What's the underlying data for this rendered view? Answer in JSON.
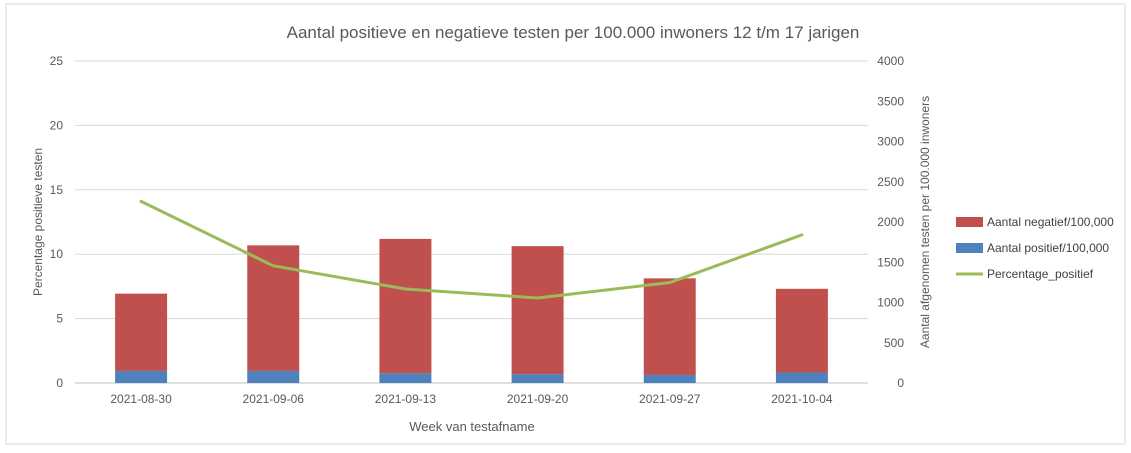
{
  "chart_data": {
    "type": "bar",
    "title": "Aantal positieve en negatieve testen per 100.000 inwoners 12 t/m 17 jarigen",
    "xlabel": "Week van testafname",
    "ylabel_left": "Percentage positieve testen",
    "ylabel_right": "Aantal afgenomen testen per 100.000 inwoners",
    "ylim_left": [
      0,
      25
    ],
    "ylim_right": [
      0,
      4000
    ],
    "yticks_left": [
      "0",
      "5",
      "10",
      "15",
      "20",
      "25"
    ],
    "yticks_right": [
      "0",
      "500",
      "1000",
      "1500",
      "2000",
      "2500",
      "3000",
      "3500",
      "4000"
    ],
    "categories": [
      "2021-08-30",
      "2021-09-06",
      "2021-09-13",
      "2021-09-20",
      "2021-09-27",
      "2021-10-04"
    ],
    "series": [
      {
        "name": "Aantal negatief/100,000",
        "kind": "stacked-bar",
        "axis": "right",
        "color": "#c0504d",
        "values": [
          960,
          1560,
          1670,
          1590,
          1200,
          1040
        ]
      },
      {
        "name": "Aantal positief/100,000",
        "kind": "stacked-bar",
        "axis": "right",
        "color": "#4f81bd",
        "values": [
          150,
          150,
          120,
          110,
          100,
          130
        ]
      },
      {
        "name": "Percentage_positief",
        "kind": "line",
        "axis": "left",
        "color": "#9bbb59",
        "values": [
          14.1,
          9.1,
          7.3,
          6.6,
          7.8,
          11.5
        ]
      }
    ],
    "legend_order": [
      "Aantal negatief/100,000",
      "Aantal positief/100,000",
      "Percentage_positief"
    ],
    "grid": true,
    "legend_position": "right"
  }
}
